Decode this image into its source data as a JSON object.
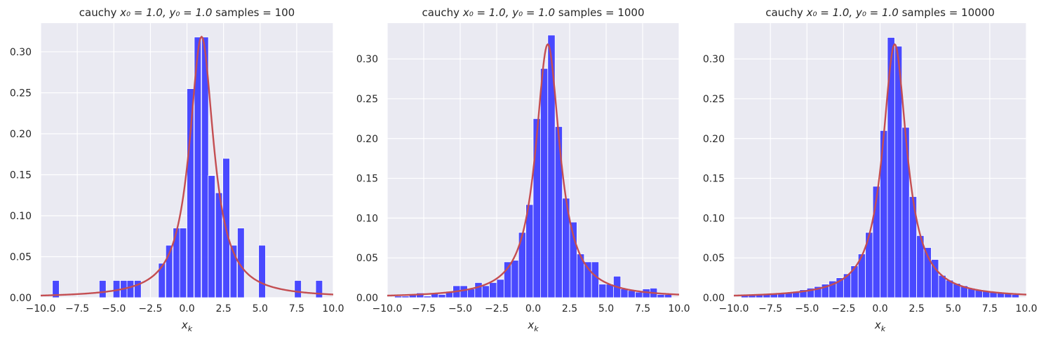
{
  "colors": {
    "background": "#eaeaf2",
    "grid": "#ffffff",
    "bars": "#4040ff",
    "curve": "#c44e52"
  },
  "chart_data": [
    {
      "type": "bar",
      "title_prefix": "cauchy ",
      "title_math": "x₀ = 1.0, y₀ = 1.0",
      "title_suffix": "  samples = 100",
      "xlabel": "x_k",
      "xlim": [
        -10,
        10
      ],
      "ylim": [
        0,
        0.335
      ],
      "grid": true,
      "x_ticks": [
        "−10.0",
        "−7.5",
        "−5.0",
        "−2.5",
        "0.0",
        "2.5",
        "5.0",
        "7.5",
        "10.0"
      ],
      "x_tick_values": [
        -10,
        -7.5,
        -5,
        -2.5,
        0,
        2.5,
        5,
        7.5,
        10
      ],
      "y_ticks": [
        "0.00",
        "0.05",
        "0.10",
        "0.15",
        "0.20",
        "0.25",
        "0.30"
      ],
      "y_tick_values": [
        0,
        0.05,
        0.1,
        0.15,
        0.2,
        0.25,
        0.3
      ],
      "bin_width": 0.47,
      "bin_lefts": [
        -9.2,
        -6.0,
        -5.05,
        -4.55,
        -4.1,
        -3.6,
        -1.95,
        -1.45,
        -0.95,
        -0.5,
        0.0,
        0.5,
        1.0,
        1.45,
        1.95,
        2.45,
        2.95,
        3.45,
        4.9,
        7.35,
        8.8
      ],
      "bin_heights": [
        0.021,
        0.021,
        0.021,
        0.021,
        0.021,
        0.021,
        0.042,
        0.064,
        0.085,
        0.085,
        0.255,
        0.318,
        0.318,
        0.149,
        0.128,
        0.17,
        0.064,
        0.085,
        0.064,
        0.021,
        0.021
      ],
      "pdf": {
        "x0": 1.0,
        "y0": 1.0
      }
    },
    {
      "type": "bar",
      "title_prefix": "cauchy ",
      "title_math": "x₀ = 1.0, y₀ = 1.0",
      "title_suffix": "  samples = 1000",
      "xlabel": "x_k",
      "xlim": [
        -10,
        10
      ],
      "ylim": [
        0,
        0.345
      ],
      "grid": true,
      "x_ticks": [
        "−10.0",
        "−7.5",
        "−5.0",
        "−2.5",
        "0.0",
        "2.5",
        "5.0",
        "7.5",
        "10.0"
      ],
      "x_tick_values": [
        -10,
        -7.5,
        -5,
        -2.5,
        0,
        2.5,
        5,
        7.5,
        10
      ],
      "y_ticks": [
        "0.00",
        "0.05",
        "0.10",
        "0.15",
        "0.20",
        "0.25",
        "0.30"
      ],
      "y_tick_values": [
        0,
        0.05,
        0.1,
        0.15,
        0.2,
        0.25,
        0.3
      ],
      "bin_width": 0.5,
      "bin_lefts": [
        -9.5,
        -9.0,
        -8.5,
        -8.0,
        -7.5,
        -7.0,
        -6.5,
        -6.0,
        -5.5,
        -5.0,
        -4.5,
        -4.0,
        -3.5,
        -3.0,
        -2.5,
        -2.0,
        -1.5,
        -1.0,
        -0.5,
        0.0,
        0.5,
        1.0,
        1.5,
        2.0,
        2.5,
        3.0,
        3.5,
        4.0,
        4.5,
        5.0,
        5.5,
        6.0,
        6.5,
        7.0,
        7.5,
        8.0,
        8.5,
        9.0
      ],
      "bin_heights": [
        0.002,
        0.002,
        0.004,
        0.006,
        0.002,
        0.006,
        0.004,
        0.008,
        0.015,
        0.015,
        0.011,
        0.019,
        0.015,
        0.019,
        0.023,
        0.045,
        0.047,
        0.082,
        0.117,
        0.225,
        0.288,
        0.33,
        0.215,
        0.125,
        0.095,
        0.055,
        0.045,
        0.045,
        0.017,
        0.017,
        0.027,
        0.011,
        0.009,
        0.007,
        0.011,
        0.012,
        0.004,
        0.004
      ],
      "pdf": {
        "x0": 1.0,
        "y0": 1.0
      }
    },
    {
      "type": "bar",
      "title_prefix": "cauchy ",
      "title_math": "x₀ = 1.0, y₀ = 1.0",
      "title_suffix": "  samples = 10000",
      "xlabel": "x_k",
      "xlim": [
        -10,
        10
      ],
      "ylim": [
        0,
        0.345
      ],
      "grid": true,
      "x_ticks": [
        "−10.0",
        "−7.5",
        "−5.0",
        "−2.5",
        "0.0",
        "2.5",
        "5.0",
        "7.5",
        "10.0"
      ],
      "x_tick_values": [
        -10,
        -7.5,
        -5,
        -2.5,
        0,
        2.5,
        5,
        7.5,
        10
      ],
      "y_ticks": [
        "0.00",
        "0.05",
        "0.10",
        "0.15",
        "0.20",
        "0.25",
        "0.30"
      ],
      "y_tick_values": [
        0,
        0.05,
        0.1,
        0.15,
        0.2,
        0.25,
        0.3
      ],
      "bin_width": 0.5,
      "bin_lefts": [
        -9.5,
        -9.0,
        -8.5,
        -8.0,
        -7.5,
        -7.0,
        -6.5,
        -6.0,
        -5.5,
        -5.0,
        -4.5,
        -4.0,
        -3.5,
        -3.0,
        -2.5,
        -2.0,
        -1.5,
        -1.0,
        -0.5,
        0.0,
        0.5,
        1.0,
        1.5,
        2.0,
        2.5,
        3.0,
        3.5,
        4.0,
        4.5,
        5.0,
        5.5,
        6.0,
        6.5,
        7.0,
        7.5,
        8.0,
        8.5,
        9.0
      ],
      "bin_heights": [
        0.003,
        0.003,
        0.004,
        0.004,
        0.005,
        0.006,
        0.007,
        0.008,
        0.01,
        0.012,
        0.014,
        0.017,
        0.021,
        0.025,
        0.03,
        0.04,
        0.055,
        0.082,
        0.14,
        0.21,
        0.327,
        0.316,
        0.214,
        0.127,
        0.078,
        0.063,
        0.048,
        0.028,
        0.022,
        0.018,
        0.015,
        0.012,
        0.01,
        0.008,
        0.007,
        0.006,
        0.005,
        0.004
      ],
      "pdf": {
        "x0": 1.0,
        "y0": 1.0
      }
    }
  ]
}
